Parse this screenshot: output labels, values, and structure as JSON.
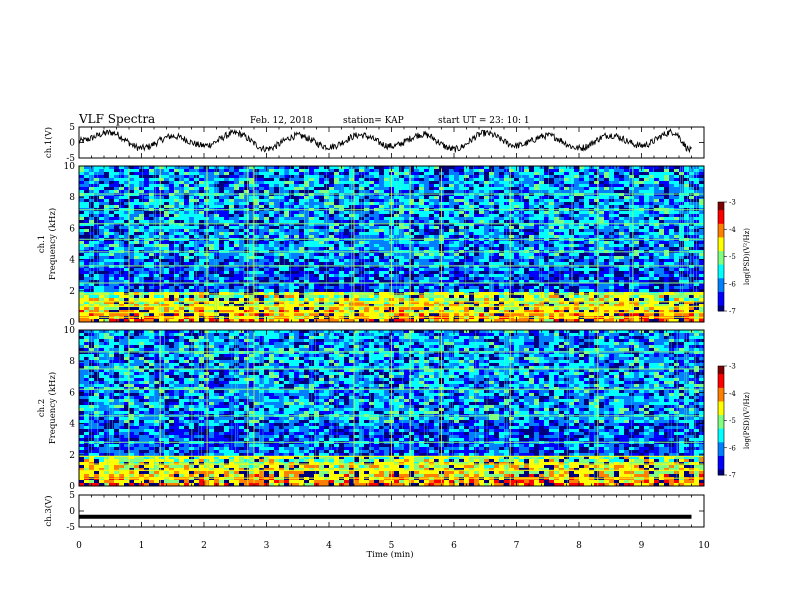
{
  "header": {
    "title": "VLF Spectra",
    "date": "Feb. 12, 2018",
    "station": "station= KAP",
    "start_ut": "start UT =   23: 10: 1"
  },
  "colors": {
    "spectrogram_colormap": [
      "#00007f",
      "#0000ff",
      "#0080ff",
      "#00ffff",
      "#80ff80",
      "#ffff00",
      "#ff8000",
      "#ff0000",
      "#7f0000"
    ],
    "waveform": "#000000",
    "axes": "#000000"
  },
  "chart_data": [
    {
      "type": "line",
      "name": "ch1-waveform-panel",
      "ylabel": "ch.1(V)",
      "ylim": [
        -5,
        5
      ],
      "xlim": [
        0,
        10
      ],
      "yticks": [
        "5",
        "0",
        "-5"
      ],
      "x": [
        0,
        0.5,
        1.0,
        1.5,
        2.0,
        2.5,
        3.0,
        3.5,
        4.0,
        4.5,
        5.0,
        5.5,
        6.0,
        6.5,
        7.0,
        7.5,
        8.0,
        8.5,
        9.0,
        9.5,
        9.8
      ],
      "y": [
        0.5,
        3.2,
        -1.8,
        2.0,
        -1.0,
        3.0,
        -2.0,
        2.2,
        -1.4,
        2.4,
        -1.2,
        2.6,
        -2.2,
        3.0,
        -1.0,
        2.2,
        -1.8,
        2.4,
        -1.0,
        3.4,
        -2.6
      ]
    },
    {
      "type": "heatmap",
      "name": "ch1-spectrogram-panel",
      "ylabel": "ch.1\nFrequency (kHz)",
      "ylim": [
        0,
        10
      ],
      "xlim": [
        0,
        10
      ],
      "yticks": [
        "0",
        "2",
        "4",
        "6",
        "8",
        "10"
      ],
      "value_range_log10": [
        -7,
        -3
      ],
      "colorbar": {
        "label": "log(PSD)(V²/Hz)",
        "ticks": [
          "-3",
          "-4",
          "-5",
          "-6",
          "-7"
        ]
      },
      "horizontal_lines_khz": [
        0.3,
        0.6,
        1.0,
        1.3,
        1.8,
        2.5,
        3.6,
        4.5,
        5.3,
        6.3,
        7.2,
        8.2
      ],
      "vertical_lines_min": [
        0.8,
        1.3,
        2.05,
        2.7,
        2.8,
        4.4,
        5.0,
        5.3,
        5.8,
        6.9,
        8.3
      ]
    },
    {
      "type": "heatmap",
      "name": "ch2-spectrogram-panel",
      "ylabel": "ch.2\nFrequency (kHz)",
      "ylim": [
        0,
        10
      ],
      "xlim": [
        0,
        10
      ],
      "yticks": [
        "0",
        "2",
        "4",
        "6",
        "8",
        "10"
      ],
      "value_range_log10": [
        -7,
        -3
      ],
      "colorbar": {
        "label": "log(PSD)(V²/Hz)",
        "ticks": [
          "-3",
          "-4",
          "-5",
          "-6",
          "-7"
        ]
      },
      "horizontal_lines_khz": [
        0.5,
        1.0,
        1.4,
        1.9,
        2.8,
        4.5,
        6.2,
        7.5,
        8.6
      ],
      "vertical_lines_min": [
        0.8,
        1.3,
        2.05,
        2.7,
        2.8,
        4.4,
        5.0,
        5.3,
        5.8,
        6.9,
        8.3
      ]
    },
    {
      "type": "line",
      "name": "ch3-waveform-panel",
      "ylabel": "ch.3(V)",
      "ylim": [
        -5,
        5
      ],
      "xlim": [
        0,
        10
      ],
      "yticks": [
        "5",
        "0",
        "-5"
      ],
      "xlabel": "Time (min)",
      "xticks": [
        "0",
        "1",
        "2",
        "3",
        "4",
        "5",
        "6",
        "7",
        "8",
        "9",
        "10"
      ],
      "x": [
        0,
        9.8
      ],
      "y": [
        -1.8,
        -1.8
      ]
    }
  ]
}
